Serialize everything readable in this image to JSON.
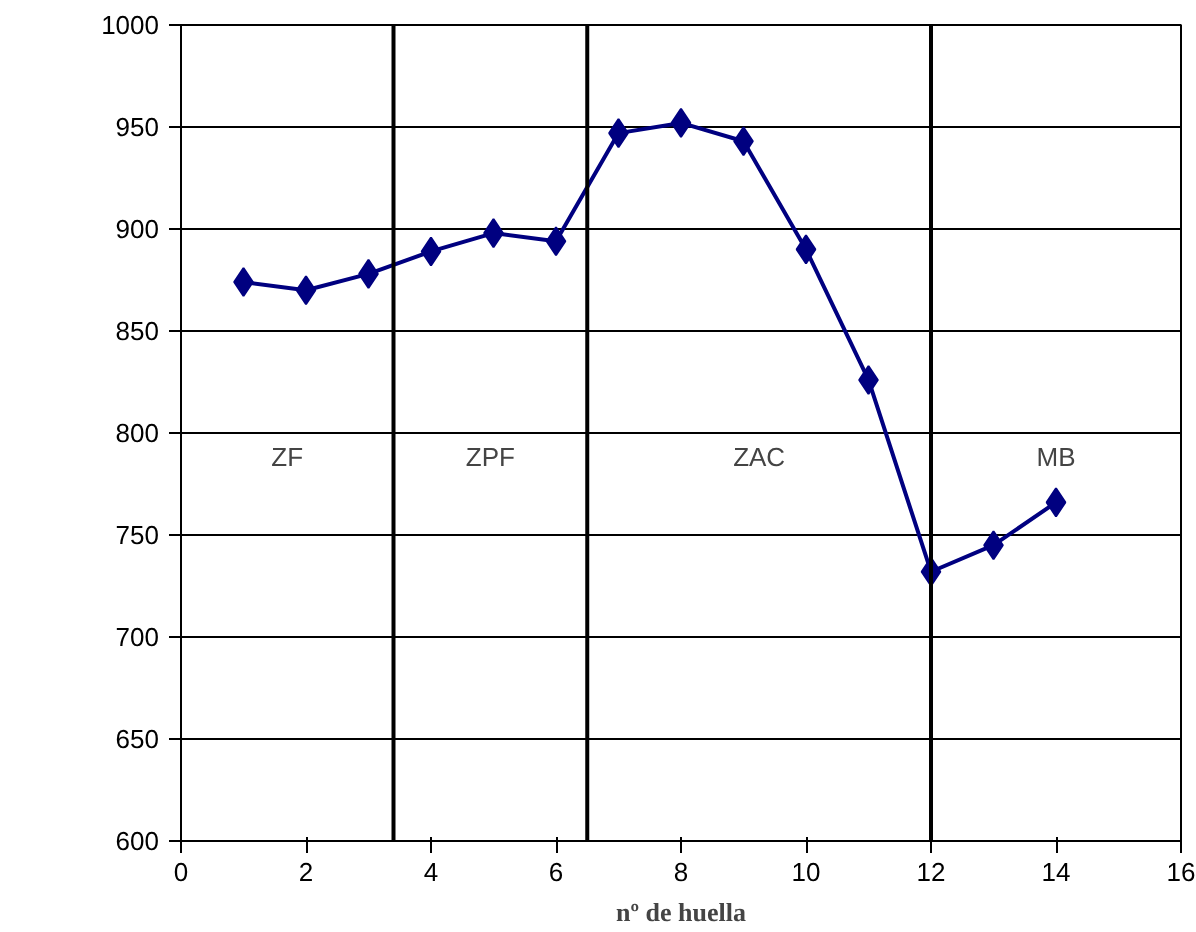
{
  "chart_data": {
    "type": "line",
    "xlabel": "nº de huella",
    "x": [
      1,
      2,
      3,
      4,
      5,
      6,
      7,
      8,
      9,
      10,
      11,
      12,
      13,
      14
    ],
    "series": [
      {
        "color": "#000080",
        "values": [
          874,
          870,
          878,
          889,
          898,
          894,
          947,
          952,
          943,
          890,
          826,
          732,
          745,
          766
        ]
      }
    ],
    "xlim": [
      0,
      16
    ],
    "xticks": [
      0,
      2,
      4,
      6,
      8,
      10,
      12,
      14,
      16
    ],
    "ylim": [
      600,
      1000
    ],
    "yticks": [
      600,
      650,
      700,
      750,
      800,
      850,
      900,
      950,
      1000
    ],
    "grid": "y",
    "marker": "diamond",
    "line_style": "solid",
    "ref_lines": [
      {
        "axis": "x",
        "value": 3.4,
        "color": "#000000"
      },
      {
        "axis": "x",
        "value": 6.5,
        "color": "#000000"
      },
      {
        "axis": "x",
        "value": 12,
        "color": "#000000"
      }
    ],
    "annotations": [
      "ZF",
      "ZPF",
      "ZAC",
      "MB"
    ]
  }
}
